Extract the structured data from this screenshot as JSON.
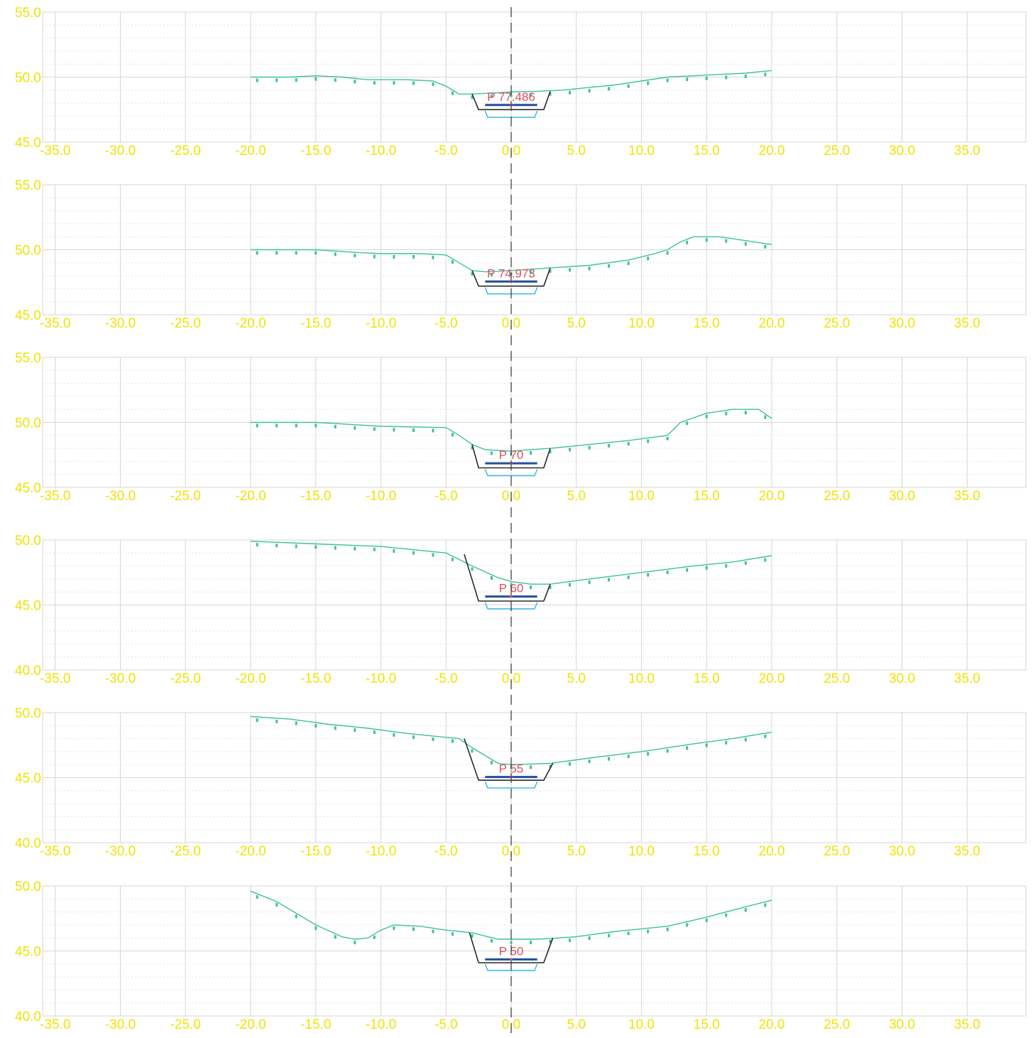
{
  "colors": {
    "ground": "#3cc0a0",
    "pipe": "#2a2a2a",
    "pipe_top": "#1f4fa0",
    "bedding": "#31b6e3",
    "tick_text": "#f0e300",
    "label": "#e0505a",
    "grid": "#d6d6d6",
    "centerline": "#333333"
  },
  "chart_data": [
    {
      "type": "line",
      "label": "P 77.486",
      "ylim": [
        45.0,
        55.0
      ],
      "yticks": [
        "45.0",
        "50.0",
        "55.0"
      ],
      "xlim": [
        -36,
        39.5
      ],
      "xticks": [
        "-35.0",
        "-30.0",
        "-25.0",
        "-20.0",
        "-15.0",
        "-10.0",
        "-5.0",
        "0.0",
        "5.0",
        "10.0",
        "15.0",
        "20.0",
        "25.0",
        "30.0",
        "35.0"
      ],
      "series": [
        {
          "role": "ground",
          "x": [
            -20,
            -17,
            -15,
            -13,
            -11,
            -8,
            -6,
            -5,
            -4,
            -3,
            -1,
            0,
            2,
            4,
            6,
            8,
            10,
            12,
            14,
            16,
            18,
            20
          ],
          "y": [
            50.0,
            50.0,
            50.1,
            50.0,
            49.8,
            49.8,
            49.7,
            49.3,
            48.7,
            48.7,
            48.8,
            48.85,
            48.9,
            49.0,
            49.2,
            49.4,
            49.7,
            50.0,
            50.1,
            50.2,
            50.3,
            50.5
          ]
        },
        {
          "role": "pipe",
          "x": [
            -3.0,
            -2.5,
            2.5,
            3.0
          ],
          "y": [
            48.7,
            47.5,
            47.5,
            48.9
          ]
        },
        {
          "role": "pipe-top",
          "x": [
            -2.0,
            2.0
          ],
          "y": [
            47.85,
            47.85
          ]
        },
        {
          "role": "bedding",
          "x": [
            -2.0,
            -1.8,
            1.8,
            2.0
          ],
          "y": [
            47.4,
            46.9,
            46.9,
            47.4
          ]
        }
      ]
    },
    {
      "type": "line",
      "label": "P 74.973",
      "ylim": [
        45.0,
        55.0
      ],
      "yticks": [
        "45.0",
        "50.0",
        "55.0"
      ],
      "xlim": [
        -36,
        39.5
      ],
      "xticks": [
        "-35.0",
        "-30.0",
        "-25.0",
        "-20.0",
        "-15.0",
        "-10.0",
        "-5.0",
        "0.0",
        "5.0",
        "10.0",
        "15.0",
        "20.0",
        "25.0",
        "30.0",
        "35.0"
      ],
      "series": [
        {
          "role": "ground",
          "x": [
            -20,
            -17,
            -15,
            -12,
            -10,
            -7,
            -5,
            -4,
            -3,
            -2,
            0,
            3,
            6,
            9,
            11,
            12,
            13,
            14,
            16,
            18,
            20
          ],
          "y": [
            50.0,
            50.0,
            50.0,
            49.8,
            49.7,
            49.7,
            49.6,
            49.0,
            48.4,
            48.3,
            48.4,
            48.6,
            48.8,
            49.2,
            49.7,
            50.0,
            50.6,
            51.0,
            51.0,
            50.7,
            50.4
          ]
        },
        {
          "role": "pipe",
          "x": [
            -3.0,
            -2.5,
            2.5,
            3.0
          ],
          "y": [
            48.4,
            47.2,
            47.2,
            48.6
          ]
        },
        {
          "role": "pipe-top",
          "x": [
            -2.0,
            2.0
          ],
          "y": [
            47.55,
            47.55
          ]
        },
        {
          "role": "bedding",
          "x": [
            -2.0,
            -1.8,
            1.8,
            2.0
          ],
          "y": [
            47.1,
            46.6,
            46.6,
            47.1
          ]
        }
      ]
    },
    {
      "type": "line",
      "label": "P 70",
      "ylim": [
        45.0,
        55.0
      ],
      "yticks": [
        "45.0",
        "50.0",
        "55.0"
      ],
      "xlim": [
        -36,
        39.5
      ],
      "xticks": [
        "-35.0",
        "-30.0",
        "-25.0",
        "-20.0",
        "-15.0",
        "-10.0",
        "-5.0",
        "0.0",
        "5.0",
        "10.0",
        "15.0",
        "20.0",
        "25.0",
        "30.0",
        "35.0"
      ],
      "series": [
        {
          "role": "ground",
          "x": [
            -20,
            -15,
            -10,
            -5,
            -4,
            -3,
            -2,
            0,
            3,
            6,
            9,
            12,
            13,
            15,
            17,
            19,
            20
          ],
          "y": [
            50.0,
            50.0,
            49.7,
            49.6,
            49.0,
            48.3,
            47.9,
            47.8,
            48.0,
            48.3,
            48.6,
            49.0,
            50.0,
            50.7,
            51.0,
            51.0,
            50.3
          ]
        },
        {
          "role": "pipe",
          "x": [
            -3.0,
            -2.5,
            2.5,
            3.0
          ],
          "y": [
            48.3,
            46.5,
            46.5,
            48.0
          ]
        },
        {
          "role": "pipe-top",
          "x": [
            -2.0,
            2.0
          ],
          "y": [
            46.85,
            46.85
          ]
        },
        {
          "role": "bedding",
          "x": [
            -2.0,
            -1.8,
            1.8,
            2.0
          ],
          "y": [
            46.4,
            45.9,
            45.9,
            46.4
          ]
        }
      ]
    },
    {
      "type": "line",
      "label": "P 60",
      "ylim": [
        40.0,
        50.0
      ],
      "yticks": [
        "40.0",
        "45.0",
        "50.0"
      ],
      "xlim": [
        -36,
        39.5
      ],
      "xticks": [
        "-35.0",
        "-30.0",
        "-25.0",
        "-20.0",
        "-15.0",
        "-10.0",
        "-5.0",
        "0.0",
        "5.0",
        "10.0",
        "15.0",
        "20.0",
        "25.0",
        "30.0",
        "35.0"
      ],
      "series": [
        {
          "role": "ground",
          "x": [
            -20,
            -15,
            -10,
            -5,
            -3,
            -1,
            0,
            1.5,
            3,
            6,
            10,
            14,
            17,
            20
          ],
          "y": [
            49.9,
            49.7,
            49.5,
            49.0,
            48.0,
            47.1,
            46.8,
            46.6,
            46.6,
            47.0,
            47.5,
            48.0,
            48.3,
            48.8
          ]
        },
        {
          "role": "pipe",
          "x": [
            -3.6,
            -2.5,
            2.5,
            3.0
          ],
          "y": [
            48.9,
            45.3,
            45.3,
            46.6
          ]
        },
        {
          "role": "pipe-top",
          "x": [
            -2.0,
            2.0
          ],
          "y": [
            45.65,
            45.65
          ]
        },
        {
          "role": "bedding",
          "x": [
            -2.0,
            -1.8,
            1.8,
            2.0
          ],
          "y": [
            45.2,
            44.7,
            44.7,
            45.2
          ]
        }
      ]
    },
    {
      "type": "line",
      "label": "P 55",
      "ylim": [
        40.0,
        50.0
      ],
      "yticks": [
        "40.0",
        "45.0",
        "50.0"
      ],
      "xlim": [
        -36,
        39.5
      ],
      "xticks": [
        "-35.0",
        "-30.0",
        "-25.0",
        "-20.0",
        "-15.0",
        "-10.0",
        "-5.0",
        "0.0",
        "5.0",
        "10.0",
        "15.0",
        "20.0",
        "25.0",
        "30.0",
        "35.0"
      ],
      "series": [
        {
          "role": "ground",
          "x": [
            -20,
            -17,
            -14,
            -11,
            -8,
            -5,
            -4,
            -3,
            -1,
            0,
            3,
            6,
            10,
            14,
            17,
            20
          ],
          "y": [
            49.7,
            49.5,
            49.1,
            48.8,
            48.4,
            48.1,
            48.0,
            47.3,
            46.1,
            46.0,
            46.1,
            46.5,
            47.0,
            47.6,
            48.0,
            48.5
          ]
        },
        {
          "role": "pipe",
          "x": [
            -3.6,
            -2.5,
            2.5,
            3.2
          ],
          "y": [
            48.0,
            44.8,
            44.8,
            46.1
          ]
        },
        {
          "role": "pipe-top",
          "x": [
            -2.0,
            2.0
          ],
          "y": [
            45.05,
            45.05
          ]
        },
        {
          "role": "bedding",
          "x": [
            -2.0,
            -1.8,
            1.8,
            2.0
          ],
          "y": [
            44.7,
            44.2,
            44.2,
            44.7
          ]
        }
      ]
    },
    {
      "type": "line",
      "label": "P 50",
      "ylim": [
        40.0,
        50.0
      ],
      "yticks": [
        "40.0",
        "45.0",
        "50.0"
      ],
      "xlim": [
        -36,
        39.5
      ],
      "xticks": [
        "-35.0",
        "-30.0",
        "-25.0",
        "-20.0",
        "-15.0",
        "-10.0",
        "-5.0",
        "0.0",
        "5.0",
        "10.0",
        "15.0",
        "20.0",
        "25.0",
        "30.0",
        "35.0"
      ],
      "series": [
        {
          "role": "ground",
          "x": [
            -20,
            -18,
            -15,
            -13,
            -12,
            -11,
            -10,
            -9,
            -7,
            -5,
            -4,
            -3,
            -1,
            0,
            2,
            5,
            8,
            12,
            15,
            18,
            20
          ],
          "y": [
            49.6,
            48.8,
            47.0,
            46.1,
            45.9,
            46.0,
            46.6,
            47.0,
            46.9,
            46.6,
            46.5,
            46.4,
            45.9,
            45.9,
            45.9,
            46.1,
            46.5,
            46.9,
            47.6,
            48.4,
            48.9
          ]
        },
        {
          "role": "pipe",
          "x": [
            -3.2,
            -2.5,
            2.5,
            3.2
          ],
          "y": [
            46.4,
            44.1,
            44.1,
            46.0
          ]
        },
        {
          "role": "pipe-top",
          "x": [
            -2.0,
            2.0
          ],
          "y": [
            44.35,
            44.35
          ]
        },
        {
          "role": "bedding",
          "x": [
            -2.0,
            -1.8,
            1.8,
            2.0
          ],
          "y": [
            44.0,
            43.5,
            43.5,
            44.0
          ]
        }
      ]
    }
  ]
}
